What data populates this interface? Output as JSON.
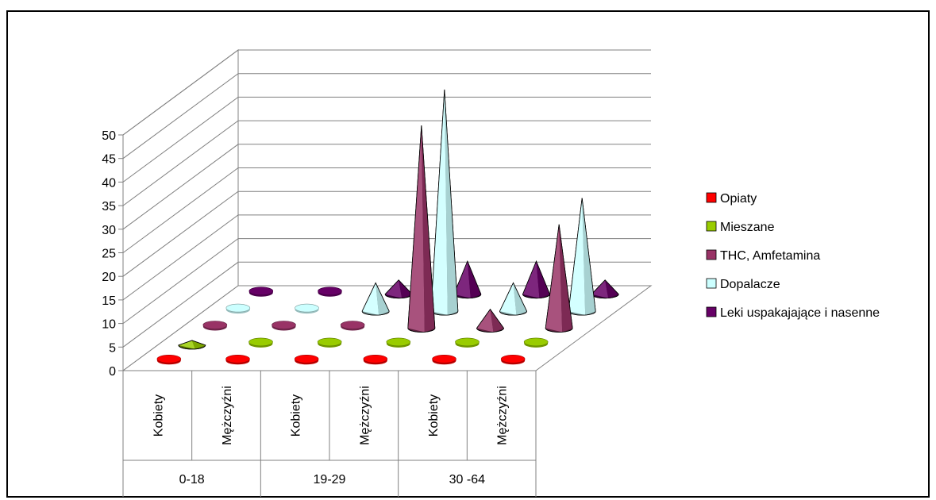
{
  "chart_data": {
    "type": "bar",
    "style": "3d-cone",
    "title": "",
    "xlabel": "",
    "ylabel": "",
    "ylim": [
      0,
      50
    ],
    "yticks": [
      "0",
      "5",
      "10",
      "15",
      "20",
      "25",
      "30",
      "35",
      "40",
      "45",
      "50"
    ],
    "grid": true,
    "legend_position": "right",
    "groups": [
      {
        "label": "0-18",
        "categories": [
          "Kobiety",
          "Mężczyźni"
        ]
      },
      {
        "label": "19-29",
        "categories": [
          "Kobiety",
          "Mężczyźni"
        ]
      },
      {
        "label": "30 -64",
        "categories": [
          "Kobiety",
          "Mężczyźni"
        ]
      }
    ],
    "categories": [
      "Kobiety",
      "Mężczyźni",
      "Kobiety",
      "Mężczyźni",
      "Kobiety",
      "Mężczyźni"
    ],
    "series": [
      {
        "name": "Opiaty",
        "color": "#ff0000",
        "values": [
          0,
          0,
          0,
          0,
          0,
          0
        ]
      },
      {
        "name": "Mieszane",
        "color": "#99cc00",
        "values": [
          1,
          0,
          0,
          0,
          0,
          0
        ]
      },
      {
        "name": "THC, Amfetamina",
        "color": "#993366",
        "values": [
          0,
          0,
          0,
          43,
          4,
          22
        ]
      },
      {
        "name": "Dopalacze",
        "color": "#ccffff",
        "values": [
          0,
          0,
          6,
          47,
          6,
          24
        ]
      },
      {
        "name": "Leki uspakajające i nasenne",
        "color": "#660066",
        "values": [
          0,
          0,
          3,
          7,
          7,
          3
        ]
      }
    ]
  }
}
